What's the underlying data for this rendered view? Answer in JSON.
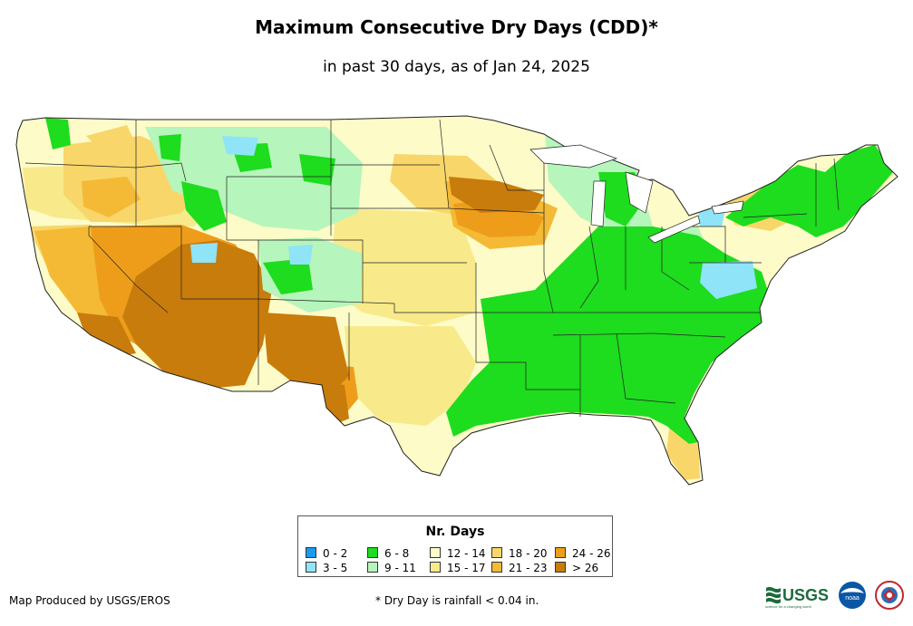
{
  "title": "Maximum Consecutive Dry Days (CDD)*",
  "subtitle": "in past 30 days, as of Jan 24, 2025",
  "legend": {
    "title": "Nr. Days",
    "items": [
      {
        "label": "0 - 2",
        "color": "#1a9bf0"
      },
      {
        "label": "3 - 5",
        "color": "#8fe4f7"
      },
      {
        "label": "6 - 8",
        "color": "#1edc1e"
      },
      {
        "label": "9 - 11",
        "color": "#b6f5bb"
      },
      {
        "label": "12 - 14",
        "color": "#fdfbc8"
      },
      {
        "label": "15 - 17",
        "color": "#f8ea8a"
      },
      {
        "label": "18 - 20",
        "color": "#f8d66a"
      },
      {
        "label": "21 - 23",
        "color": "#f4ba36"
      },
      {
        "label": "24 - 26",
        "color": "#ee9d1a"
      },
      {
        "label": "> 26",
        "color": "#c87c0c"
      }
    ]
  },
  "footer": {
    "producer": "Map Produced by USGS/EROS",
    "note": "* Dry Day is rainfall < 0.04 in."
  },
  "logos": {
    "usgs": "USGS",
    "usgs_tagline": "science for a changing world",
    "noaa": "noaa"
  }
}
